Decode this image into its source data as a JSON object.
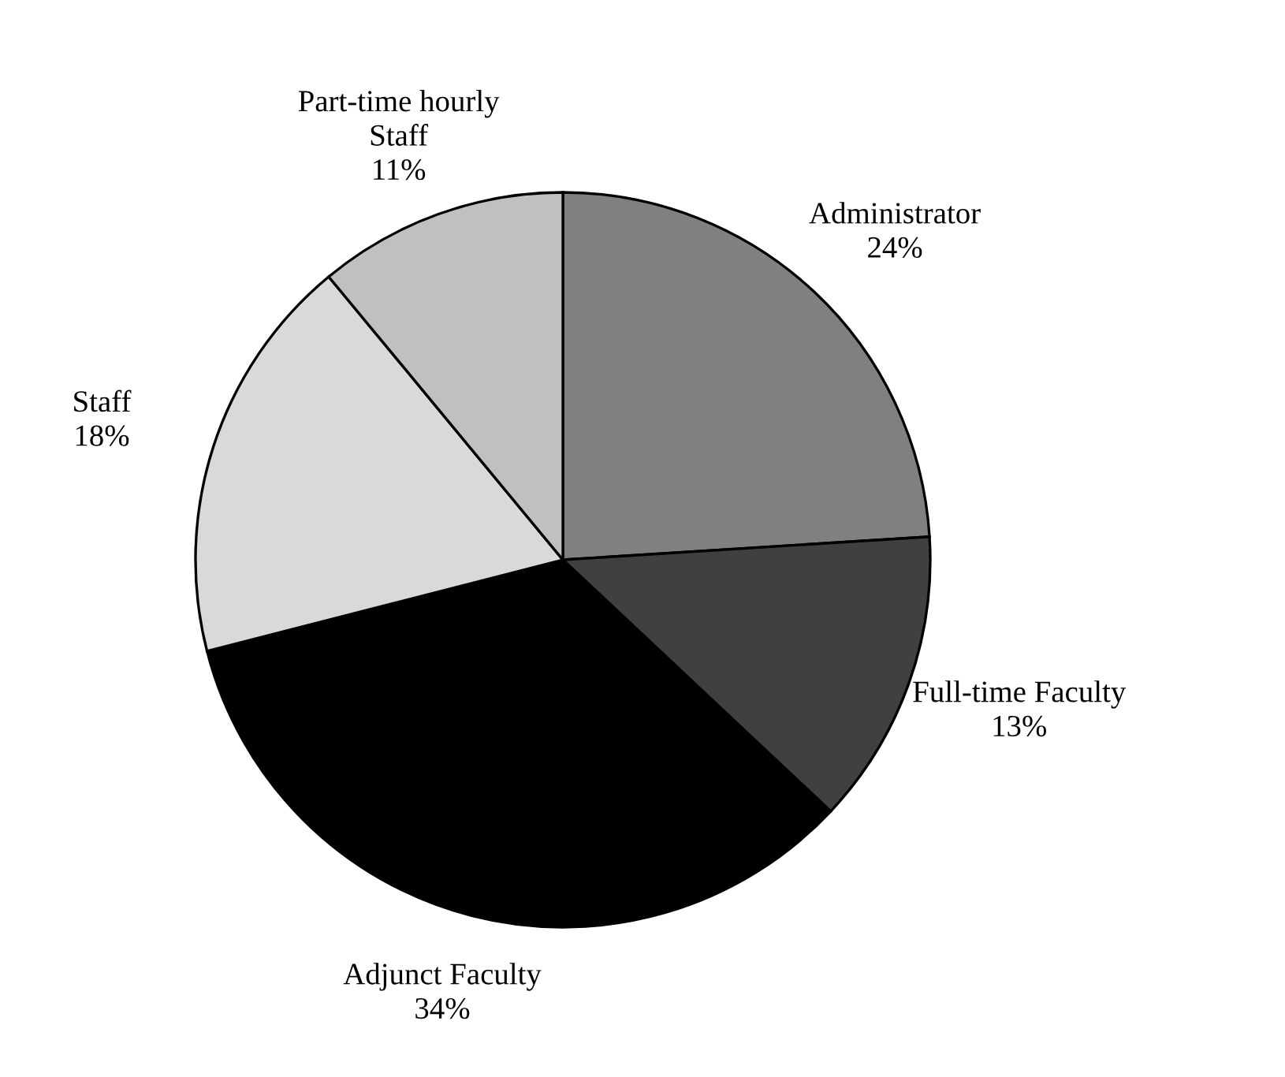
{
  "chart_data": {
    "type": "pie",
    "categories": [
      "Administrator",
      "Full-time Faculty",
      "Adjunct Faculty",
      "Staff",
      "Part-time hourly\nStaff"
    ],
    "values": [
      24,
      13,
      34,
      18,
      11
    ],
    "colors": [
      "#808080",
      "#404040",
      "#000000",
      "#d9d9d9",
      "#c0c0c0"
    ],
    "value_labels": [
      "24%",
      "13%",
      "34%",
      "18%",
      "11%"
    ],
    "legend": false
  }
}
